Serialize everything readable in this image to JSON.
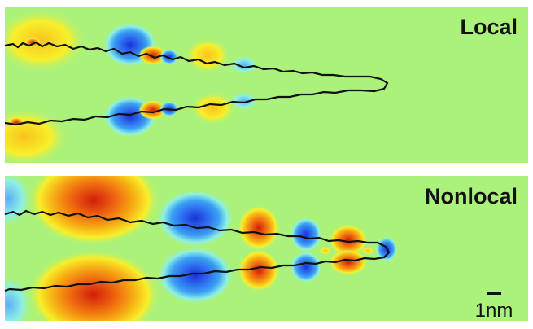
{
  "panels": [
    {
      "label": "Local"
    },
    {
      "label": "Nonlocal"
    }
  ],
  "scale_bar": {
    "label": "1nm"
  },
  "colors": {
    "background_field": "#abf27a",
    "positive": "#d01e0a",
    "positive_mid": "#f6ad14",
    "positive_weak": "#f8ef2a",
    "negative": "#1733d6",
    "negative_mid": "#3aa0f2",
    "negative_weak": "#8ef0e6",
    "outline": "#111111"
  }
}
